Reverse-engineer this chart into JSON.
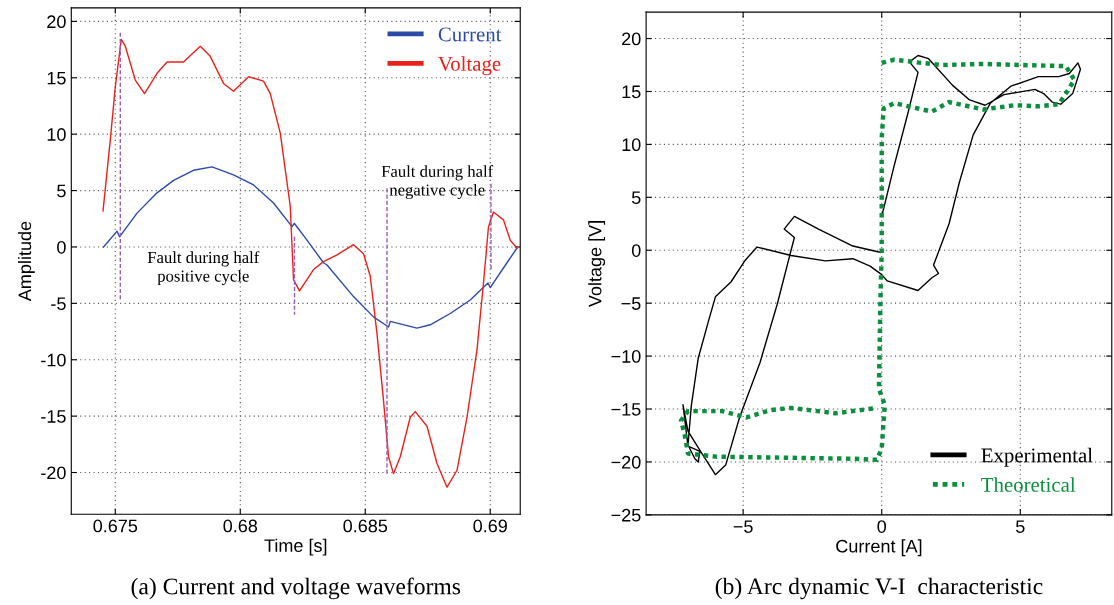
{
  "chart_data": [
    {
      "type": "line",
      "title": "(a) Current and voltage waveforms",
      "xlabel": "Time [s]",
      "ylabel": "Amplitude",
      "xlim": [
        0.67324,
        0.6912
      ],
      "ylim": [
        -23.7,
        21.2
      ],
      "xticks": [
        0.675,
        0.68,
        0.685,
        0.69
      ],
      "yticks": [
        -20,
        -15,
        -10,
        -5,
        0,
        5,
        10,
        15,
        20
      ],
      "grid": true,
      "legend": "top right",
      "annotations": [
        "Fault during half\npositive cycle",
        "Fault during half\nnegative cycle"
      ],
      "series": [
        {
          "name": "Current",
          "color": "#2b4aa8",
          "line_style": "solid",
          "x": [
            0.67453,
            0.67507,
            0.67517,
            0.67587,
            0.67667,
            0.67733,
            0.67813,
            0.67887,
            0.67973,
            0.68053,
            0.68133,
            0.68207,
            0.68216,
            0.68267,
            0.68333,
            0.68347,
            0.68453,
            0.68533,
            0.68593,
            0.686,
            0.68707,
            0.6876,
            0.6884,
            0.6892,
            0.68991,
            0.69,
            0.69067,
            0.69107
          ],
          "values": [
            0.0,
            1.4,
            0.9,
            3.0,
            4.8,
            5.9,
            6.8,
            7.1,
            6.4,
            5.5,
            3.9,
            1.8,
            2.1,
            0.6,
            -1.4,
            -1.6,
            -4.4,
            -6.2,
            -7.1,
            -6.6,
            -7.2,
            -6.9,
            -5.9,
            -4.7,
            -3.2,
            -3.6,
            -1.4,
            -0.1
          ]
        },
        {
          "name": "Voltage",
          "color": "#e8221b",
          "line_style": "solid",
          "x": [
            0.67451,
            0.6748,
            0.675,
            0.67524,
            0.6754,
            0.6758,
            0.67617,
            0.67667,
            0.67707,
            0.67773,
            0.6784,
            0.6788,
            0.67933,
            0.67973,
            0.68033,
            0.68093,
            0.6812,
            0.6816,
            0.682,
            0.68213,
            0.68237,
            0.68293,
            0.68333,
            0.68387,
            0.68453,
            0.68493,
            0.6852,
            0.68547,
            0.68573,
            0.68593,
            0.68613,
            0.6864,
            0.6868,
            0.687,
            0.68747,
            0.68787,
            0.68827,
            0.68867,
            0.68907,
            0.68947,
            0.68973,
            0.68993,
            0.69013,
            0.69053,
            0.6908,
            0.69107
          ],
          "values": [
            3.2,
            9.5,
            14.2,
            18.4,
            17.8,
            14.8,
            13.6,
            15.4,
            16.4,
            16.4,
            17.8,
            16.9,
            14.5,
            13.8,
            15.1,
            14.7,
            13.6,
            10.1,
            3.6,
            -2.9,
            -3.9,
            -2.0,
            -1.3,
            -0.7,
            0.2,
            -0.6,
            -2.6,
            -7.7,
            -13.6,
            -18.6,
            -20.1,
            -18.6,
            -15.1,
            -14.6,
            -15.9,
            -19.2,
            -21.3,
            -19.8,
            -15.1,
            -9.1,
            -3.2,
            1.8,
            3.1,
            2.4,
            0.6,
            -0.1
          ]
        },
        {
          "color": "#9a5cb4",
          "line_style": "dashed",
          "x": [
            0.6752,
            0.6752
          ],
          "values": [
            19.0,
            -4.7
          ]
        },
        {
          "color": "#9a5cb4",
          "line_style": "dashed",
          "x": [
            0.68217,
            0.68217
          ],
          "values": [
            0.9,
            -6.0
          ]
        },
        {
          "color": "#9a5cb4",
          "line_style": "dashed",
          "x": [
            0.68587,
            0.68587
          ],
          "values": [
            5.2,
            -20.2
          ]
        },
        {
          "color": "#9a5cb4",
          "line_style": "dashed",
          "x": [
            0.69003,
            0.69003
          ],
          "values": [
            5.6,
            -2.0
          ]
        }
      ]
    },
    {
      "type": "line",
      "title": "(b) Arc dynamic V-I  characteristic",
      "xlabel": "Current [A]",
      "ylabel": "Voltage [V]",
      "xlim": [
        -8.5,
        8.3
      ],
      "ylim": [
        -25,
        22.5
      ],
      "xticks": [
        {
          "value": -5,
          "label": "−5"
        },
        0,
        5
      ],
      "yticks": [
        {
          "value": -25,
          "label": "−25"
        },
        {
          "value": -20,
          "label": "−20"
        },
        {
          "value": -15,
          "label": "−15"
        },
        {
          "value": -10,
          "label": "−10"
        },
        {
          "value": -5,
          "label": "−5"
        },
        0,
        5,
        10,
        15,
        20
      ],
      "grid": true,
      "legend": "bottom right",
      "series": [
        {
          "name": "Experimental",
          "color": "#000000",
          "line_style": "solid",
          "x": [
            0,
            0.45,
            0.94,
            1.31,
            1.0,
            1.31,
            1.69,
            2.55,
            3.17,
            3.73,
            4.41,
            5.53,
            5.84,
            6.15,
            6.46,
            6.89,
            7.17,
            7.08,
            6.77,
            6.39,
            5.65,
            4.66,
            3.92,
            3.3,
            2.8,
            2.43,
            1.87,
            2.05,
            1.81,
            1.31,
            0.2,
            0,
            -0.42,
            -1.04,
            -2.03,
            -3.27,
            -4.5,
            -4.94,
            -5.44,
            -6.0,
            -6.25,
            -6.62,
            -6.87,
            -6.99,
            -6.74,
            -6.62,
            -6.56,
            -6.99,
            -7.17,
            -6.99,
            -6.49,
            -6.0,
            -5.63,
            -5.13,
            -4.39,
            -3.77,
            -3.27,
            -3.15,
            -3.52,
            -3.15,
            -2.28,
            -1.04,
            -0.05
          ],
          "values": [
            3.2,
            8.0,
            12.9,
            16.8,
            17.8,
            18.4,
            18.1,
            15.6,
            14.2,
            13.7,
            14.7,
            15.2,
            14.8,
            14.0,
            13.8,
            14.8,
            17.1,
            17.7,
            16.7,
            16.4,
            16.4,
            15.5,
            13.9,
            10.9,
            6.4,
            2.5,
            -1.4,
            -2.2,
            -2.6,
            -3.8,
            -2.9,
            -2.3,
            -1.5,
            -0.8,
            -1.0,
            -0.5,
            0.3,
            -1.0,
            -3.0,
            -4.4,
            -6.7,
            -10.2,
            -14.7,
            -18.4,
            -19.7,
            -20.0,
            -19.0,
            -18.5,
            -14.6,
            -17.1,
            -19.2,
            -21.2,
            -20.3,
            -15.8,
            -10.6,
            -5.1,
            0,
            1.2,
            2.0,
            3.2,
            2.0,
            0.4,
            -0.2
          ]
        },
        {
          "name": "Theoretical",
          "color": "#0a8f3c",
          "line_style": "dotted",
          "x": [
            0,
            0.45,
            1.44,
            2.18,
            3.67,
            5.03,
            6.64,
            6.95,
            6.64,
            6.39,
            5.65,
            4.78,
            3.67,
            2.43,
            1.81,
            0.45,
            0.07,
            0,
            0,
            -0.05,
            -0.1,
            0.11,
            0,
            -0.17,
            -1.04,
            -3.52,
            -6.0,
            -6.99,
            -7.11,
            -7.24,
            -6.99,
            -5.75,
            -4.88,
            -4.01,
            -3.27,
            -1.66,
            -0.17
          ],
          "values": [
            17.7,
            18.0,
            17.7,
            17.5,
            17.6,
            17.5,
            17.4,
            16.1,
            14.8,
            13.8,
            13.6,
            13.7,
            13.3,
            14.0,
            13.1,
            13.9,
            13.4,
            10.6,
            0,
            -5.1,
            -13.1,
            -14.6,
            -18.7,
            -19.8,
            -19.7,
            -19.6,
            -19.5,
            -19.2,
            -17.4,
            -16.1,
            -15.2,
            -15.2,
            -15.8,
            -15.1,
            -14.9,
            -15.4,
            -14.9
          ]
        }
      ]
    }
  ]
}
